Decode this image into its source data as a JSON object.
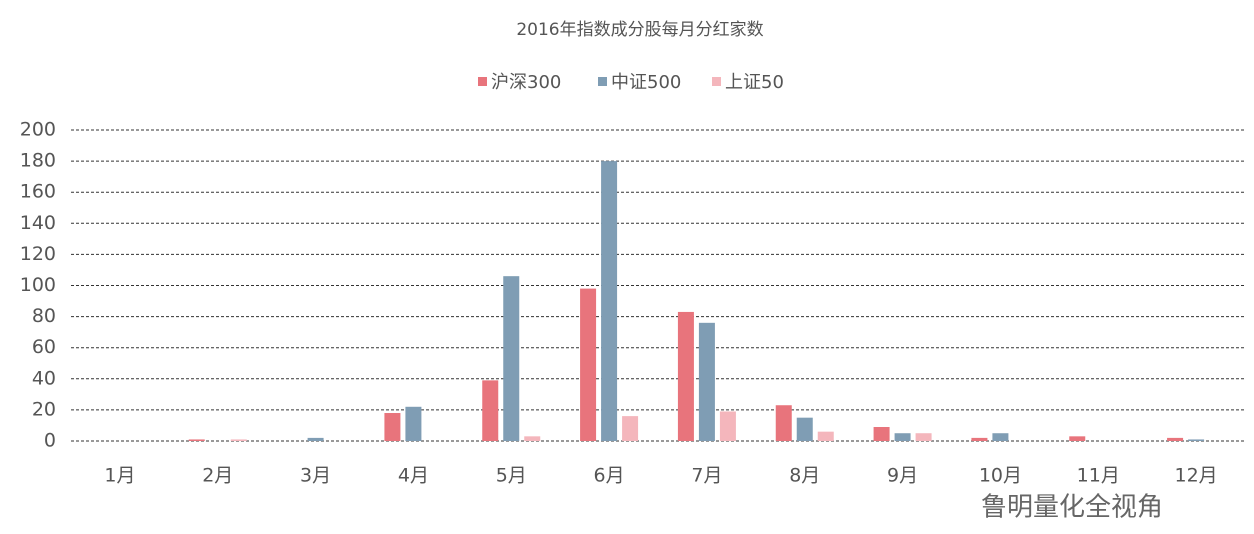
{
  "chart_data": {
    "type": "bar",
    "title": "2016年指数成分股每月分红家数",
    "categories": [
      "1月",
      "2月",
      "3月",
      "4月",
      "5月",
      "6月",
      "7月",
      "8月",
      "9月",
      "10月",
      "11月",
      "12月"
    ],
    "series": [
      {
        "name": "沪深300",
        "color": "#e8747c",
        "values": [
          0,
          1,
          0,
          18,
          39,
          98,
          83,
          23,
          9,
          2,
          3,
          2
        ]
      },
      {
        "name": "中证500",
        "color": "#7f9db4",
        "values": [
          0,
          0,
          2,
          22,
          106,
          180,
          76,
          15,
          5,
          5,
          0,
          1
        ]
      },
      {
        "name": "上证50",
        "color": "#f4b6bc",
        "values": [
          0,
          1,
          0,
          0,
          3,
          16,
          19,
          6,
          5,
          0,
          0,
          0
        ]
      }
    ],
    "ylim": [
      0,
      200
    ],
    "yticks": [
      0,
      20,
      40,
      60,
      80,
      100,
      120,
      140,
      160,
      180,
      200
    ],
    "grid": true,
    "legend": "top",
    "watermark": "鲁明量化全视角"
  }
}
